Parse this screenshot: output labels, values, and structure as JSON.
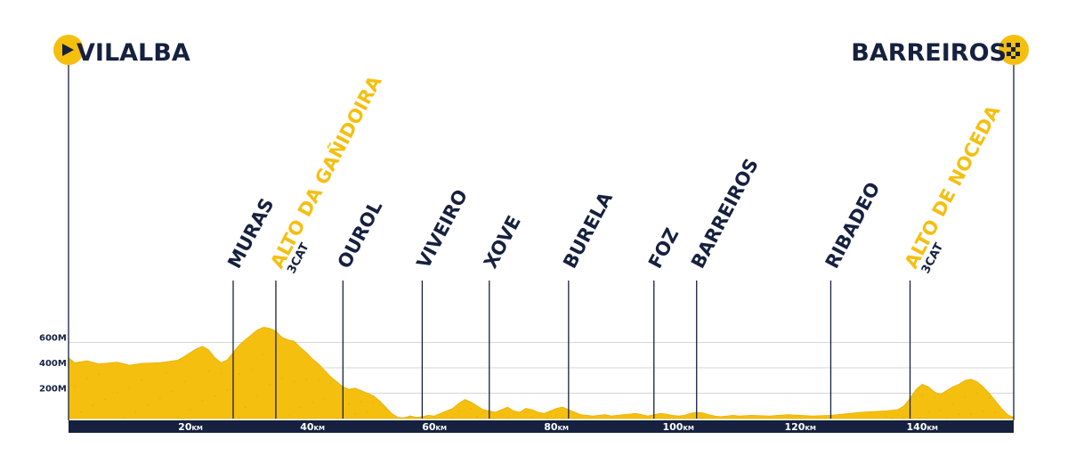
{
  "chart_data": {
    "type": "area",
    "title": "",
    "xlabel": "",
    "ylabel": "",
    "unit_x": "KM",
    "unit_y": "M",
    "xlim": [
      0,
      155
    ],
    "ylim": [
      0,
      800
    ],
    "grid": true,
    "x_ticks": [
      {
        "value": 20,
        "label": "20",
        "unit": "KM"
      },
      {
        "value": 40,
        "label": "40",
        "unit": "KM"
      },
      {
        "value": 60,
        "label": "60",
        "unit": "KM"
      },
      {
        "value": 80,
        "label": "80",
        "unit": "KM"
      },
      {
        "value": 100,
        "label": "100",
        "unit": "KM"
      },
      {
        "value": 120,
        "label": "120",
        "unit": "KM"
      },
      {
        "value": 140,
        "label": "140",
        "unit": "KM"
      }
    ],
    "y_ticks": [
      {
        "value": 200,
        "label": "200M"
      },
      {
        "value": 400,
        "label": "400M"
      },
      {
        "value": 600,
        "label": "600M"
      }
    ],
    "start": {
      "name": "VILALBA",
      "icon": "play-icon"
    },
    "finish": {
      "name": "BARREIROS",
      "icon": "checkered-flag-icon"
    },
    "waypoints": [
      {
        "name": "MURAS",
        "km": 27,
        "highlight": false
      },
      {
        "name": "ALTO DA GAÑIDOIRA",
        "km": 34,
        "highlight": true,
        "category": "3CAT"
      },
      {
        "name": "OUROL",
        "km": 45,
        "highlight": false
      },
      {
        "name": "VIVEIRO",
        "km": 58,
        "highlight": false
      },
      {
        "name": "XOVE",
        "km": 69,
        "highlight": false
      },
      {
        "name": "BURELA",
        "km": 82,
        "highlight": false
      },
      {
        "name": "FOZ",
        "km": 96,
        "highlight": false
      },
      {
        "name": "BARREIROS",
        "km": 103,
        "highlight": false
      },
      {
        "name": "RIBADEO",
        "km": 125,
        "highlight": false
      },
      {
        "name": "ALTO DE NOCEDA",
        "km": 138,
        "highlight": true,
        "category": "3CAT"
      }
    ],
    "series": [
      {
        "x": [
          0,
          1,
          3,
          5,
          8,
          10,
          12,
          15,
          18,
          19,
          20,
          21,
          22,
          23,
          24,
          25,
          26,
          27,
          28,
          29,
          30,
          31,
          32,
          33,
          34,
          35,
          36,
          37,
          38,
          39,
          40,
          41,
          42,
          43,
          44,
          45,
          46,
          47,
          48,
          49,
          50,
          51,
          52,
          53,
          54,
          55,
          56,
          57,
          58,
          59,
          60,
          61,
          62,
          63,
          64,
          65,
          66,
          67,
          68,
          69,
          70,
          71,
          72,
          73,
          74,
          75,
          76,
          77,
          78,
          79,
          80,
          81,
          82,
          83,
          84,
          85,
          86,
          87,
          88,
          89,
          90,
          91,
          92,
          93,
          94,
          95,
          96,
          97,
          98,
          99,
          100,
          101,
          102,
          103,
          104,
          105,
          106,
          107,
          108,
          109,
          110,
          112,
          115,
          118,
          120,
          122,
          125,
          127,
          128,
          129,
          130,
          132,
          134,
          136,
          137,
          138,
          139,
          140,
          141,
          142,
          143,
          144,
          145,
          146,
          147,
          148,
          149,
          150,
          151,
          152,
          153,
          154,
          155
        ],
        "y": [
          480,
          440,
          455,
          430,
          445,
          420,
          435,
          440,
          460,
          490,
          520,
          550,
          570,
          540,
          480,
          440,
          460,
          520,
          580,
          620,
          660,
          700,
          720,
          710,
          690,
          640,
          620,
          610,
          560,
          520,
          470,
          430,
          380,
          330,
          290,
          250,
          230,
          240,
          220,
          200,
          180,
          140,
          90,
          40,
          10,
          5,
          20,
          10,
          15,
          25,
          20,
          40,
          60,
          80,
          120,
          150,
          130,
          100,
          70,
          60,
          50,
          70,
          90,
          60,
          50,
          80,
          70,
          50,
          40,
          60,
          80,
          90,
          70,
          50,
          30,
          25,
          20,
          25,
          30,
          20,
          25,
          30,
          35,
          40,
          30,
          20,
          30,
          40,
          35,
          25,
          20,
          25,
          40,
          50,
          45,
          30,
          20,
          15,
          20,
          25,
          20,
          25,
          20,
          30,
          25,
          20,
          25,
          35,
          40,
          45,
          50,
          55,
          60,
          70,
          100,
          160,
          230,
          270,
          250,
          210,
          190,
          220,
          250,
          270,
          300,
          310,
          290,
          250,
          200,
          140,
          80,
          30,
          10
        ]
      }
    ]
  }
}
